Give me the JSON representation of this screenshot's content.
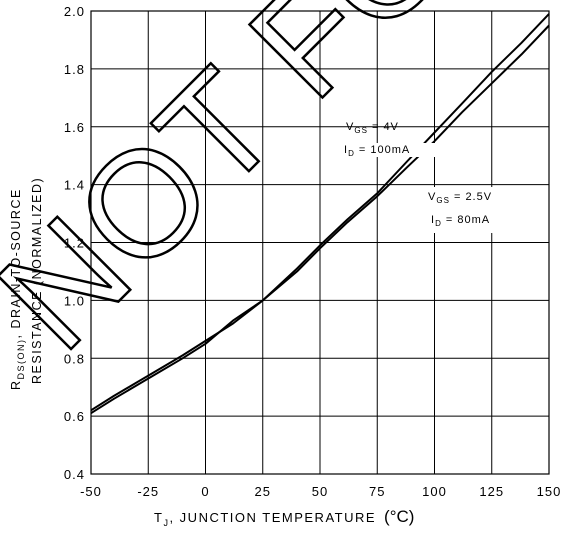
{
  "chart_data": {
    "type": "line",
    "watermark": "NOT FOR",
    "xlabel": {
      "symbol": "T",
      "subscript": "J",
      "text": ", JUNCTION TEMPERATURE",
      "unit": "(°C)"
    },
    "ylabel": {
      "symbol": "R",
      "subscript": "DS(ON)",
      "line1_rest": ", DRAIN-TO-SOURCE",
      "line2": "RESISTANCE (NORMALIZED)"
    },
    "xlim": [
      -50,
      150
    ],
    "ylim": [
      0.4,
      2.0
    ],
    "xticks": [
      -50,
      -25,
      0,
      25,
      50,
      75,
      100,
      125,
      150
    ],
    "xtick_labels": [
      "-50",
      "-25",
      "0",
      "25",
      "50",
      "75",
      "100",
      "125",
      "150"
    ],
    "yticks": [
      0.4,
      0.6,
      0.8,
      1.0,
      1.2,
      1.4,
      1.6,
      1.8,
      2.0
    ],
    "ytick_labels": [
      "0.4",
      "0.6",
      "0.8",
      "1.0",
      "1.2",
      "1.4",
      "1.6",
      "1.8",
      "2.0"
    ],
    "grid": true,
    "series": [
      {
        "annotation": {
          "line1_symbol": "V",
          "line1_sub": "GS",
          "line1_rest": " = 4V",
          "line2_symbol": "I",
          "line2_sub": "D",
          "line2_rest": " = 100mA"
        },
        "x": [
          -50,
          -40,
          -25,
          -10,
          0,
          12,
          25,
          40,
          50,
          62,
          75,
          88,
          100,
          112,
          125,
          138,
          150
        ],
        "y": [
          0.61,
          0.66,
          0.73,
          0.8,
          0.85,
          0.93,
          1.0,
          1.1,
          1.18,
          1.27,
          1.36,
          1.46,
          1.55,
          1.65,
          1.75,
          1.85,
          1.95
        ]
      },
      {
        "annotation": {
          "line1_symbol": "V",
          "line1_sub": "GS",
          "line1_rest": " = 2.5V",
          "line2_symbol": "I",
          "line2_sub": "D",
          "line2_rest": " = 80mA"
        },
        "x": [
          -50,
          -40,
          -25,
          -10,
          0,
          12,
          25,
          40,
          50,
          62,
          75,
          88,
          100,
          112,
          125,
          138,
          150
        ],
        "y": [
          0.62,
          0.67,
          0.74,
          0.81,
          0.86,
          0.92,
          1.0,
          1.11,
          1.19,
          1.28,
          1.37,
          1.48,
          1.58,
          1.68,
          1.79,
          1.89,
          1.99
        ]
      }
    ]
  }
}
